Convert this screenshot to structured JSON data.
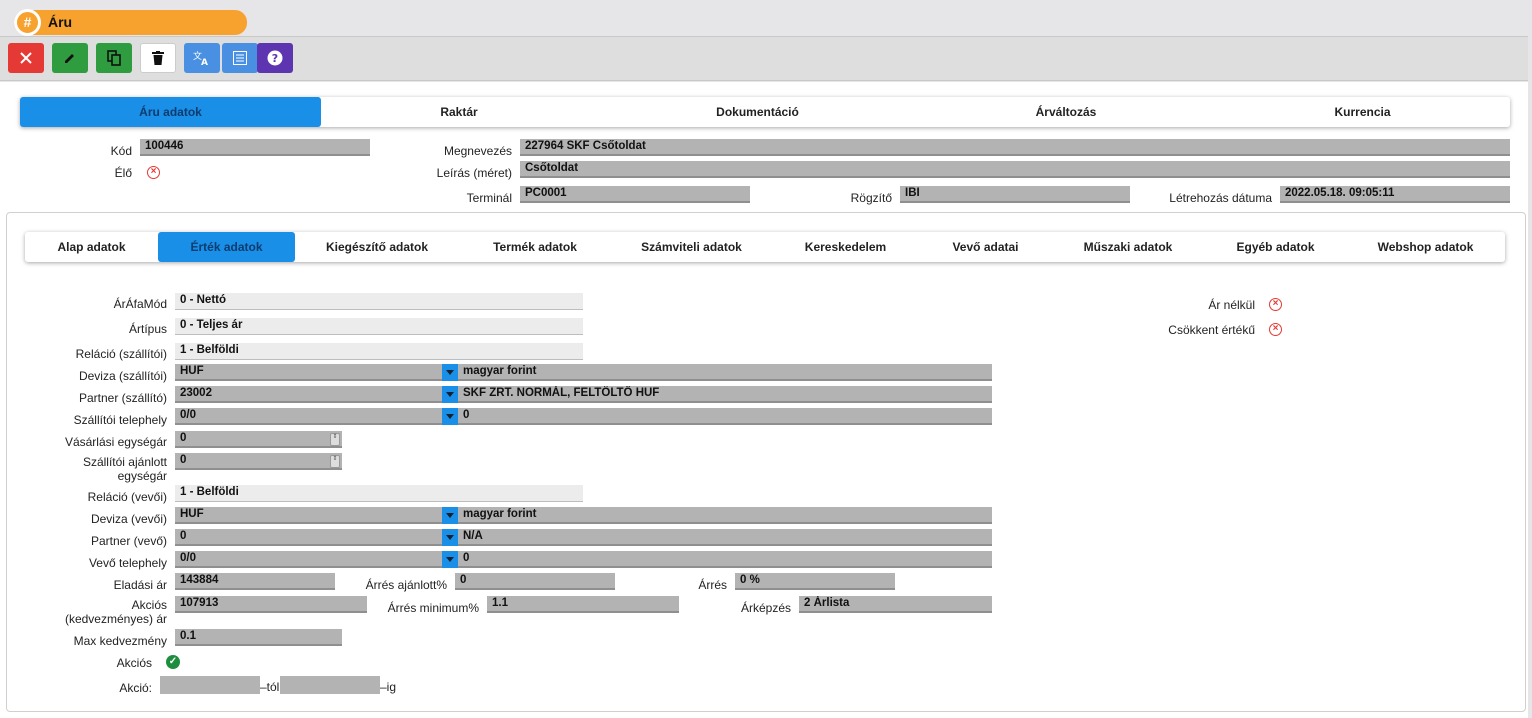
{
  "window": {
    "title": "Áru",
    "title_icon": "hash-icon"
  },
  "toolbar": {
    "buttons": [
      {
        "name": "close-button",
        "icon": "close-icon",
        "color": "#e53935"
      },
      {
        "name": "edit-button",
        "icon": "pencil-icon",
        "color": "#2e9c3f"
      },
      {
        "name": "copy-button",
        "icon": "copy-icon",
        "color": "#2e9c3f"
      },
      {
        "name": "delete-button",
        "icon": "trash-icon",
        "color": "#ffffff"
      },
      {
        "name": "translate-button",
        "icon": "translate-icon",
        "color": "#4a90e2"
      },
      {
        "name": "list-button",
        "icon": "list-icon",
        "color": "#4a90e2"
      },
      {
        "name": "help-button",
        "icon": "help-icon",
        "color": "#5e35b1"
      }
    ]
  },
  "main_tabs": [
    "Áru adatok",
    "Raktár",
    "Dokumentáció",
    "Árváltozás",
    "Kurrencia"
  ],
  "header": {
    "kod_label": "Kód",
    "kod_value": "100446",
    "elo_label": "Élő",
    "megnevezes_label": "Megnevezés",
    "megnevezes_value": "227964 SKF Csőtoldat",
    "leiras_label": "Leírás (méret)",
    "leiras_value": "Csőtoldat",
    "terminal_label": "Terminál",
    "terminal_value": "PC0001",
    "rogzito_label": "Rögzítő",
    "rogzito_value": "IBI",
    "letrehozas_label": "Létrehozás dátuma",
    "letrehozas_value": "2022.05.18. 09:05:11"
  },
  "sub_tabs": [
    "Alap adatok",
    "Érték adatok",
    "Kiegészítő adatok",
    "Termék adatok",
    "Számviteli adatok",
    "Kereskedelem",
    "Vevő adatai",
    "Műszaki adatok",
    "Egyéb adatok",
    "Webshop adatok"
  ],
  "form": {
    "arafamod_label": "ÁrÁfaMód",
    "arafamod_value": "0 - Nettó",
    "artipus_label": "Ártípus",
    "artipus_value": "0 - Teljes ár",
    "relacio_sz_label": "Reláció (szállítói)",
    "relacio_sz_value": "1 - Belföldi",
    "deviza_sz_label": "Deviza (szállítói)",
    "deviza_sz_value": "HUF",
    "deviza_sz_desc": "magyar forint",
    "partner_sz_label": "Partner (szállító)",
    "partner_sz_value": "23002",
    "partner_sz_desc": "SKF ZRT. NORMÁL, FELTÖLTŐ HUF",
    "telephely_sz_label": "Szállítói telephely",
    "telephely_sz_value": "0/0",
    "telephely_sz_desc": "0",
    "vasarlasi_label": "Vásárlási egységár",
    "vasarlasi_value": "0",
    "szall_ajanlott_label1": "Szállítói ajánlott",
    "szall_ajanlott_label2": "egységár",
    "szall_ajanlott_value": "0",
    "relacio_v_label": "Reláció (vevői)",
    "relacio_v_value": "1 - Belföldi",
    "deviza_v_label": "Deviza (vevői)",
    "deviza_v_value": "HUF",
    "deviza_v_desc": "magyar forint",
    "partner_v_label": "Partner (vevő)",
    "partner_v_value": "0",
    "partner_v_desc": "N/A",
    "telephely_v_label": "Vevő telephely",
    "telephely_v_value": "0/0",
    "telephely_v_desc": "0",
    "eladasi_label": "Eladási ár",
    "eladasi_value": "143884",
    "arres_ajanlott_label": "Árrés ajánlott%",
    "arres_ajanlott_value": "0",
    "arres_label": "Árrés",
    "arres_value": "0 %",
    "akcios_ar_label1": "Akciós",
    "akcios_ar_label2": "(kedvezményes) ár",
    "akcios_ar_value": "107913",
    "arres_min_label": "Árrés minimum%",
    "arres_min_value": "1.1",
    "arkepzes_label": "Árképzés",
    "arkepzes_value": "2  Árlista",
    "max_kedv_label": "Max kedvezmény",
    "max_kedv_value": "0.1",
    "akcios_label": "Akciós",
    "akcio_label": "Akció:",
    "akcio_tol": "–tól",
    "akcio_ig": "–ig",
    "ar_nelkul_label": "Ár nélkül",
    "csokkent_label": "Csökkent értékű"
  }
}
